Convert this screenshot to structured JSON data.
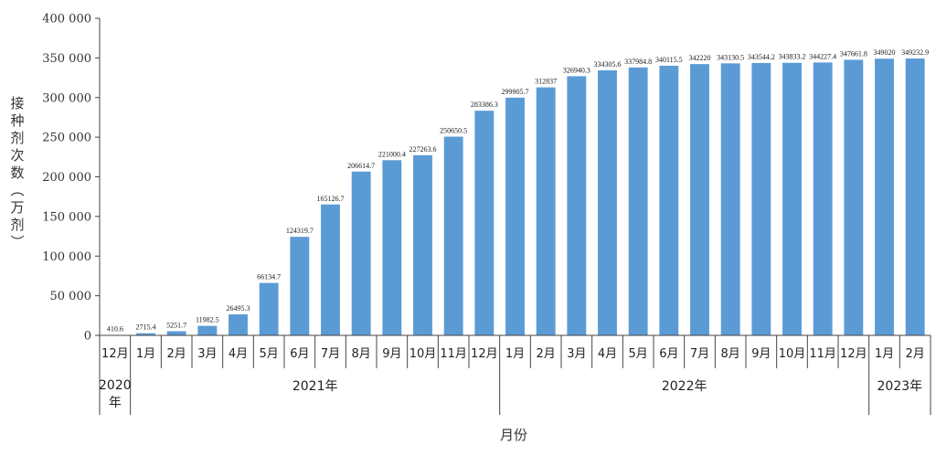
{
  "chart_data": {
    "type": "bar",
    "title": "",
    "xlabel": "月份",
    "ylabel": "接种剂次数（万剂）",
    "ylim": [
      0,
      400000
    ],
    "yticks": [
      "0",
      "50 000",
      "100 000",
      "150 000",
      "200 000",
      "250 000",
      "300 000",
      "350 000",
      "400 000"
    ],
    "grid": false,
    "bar_color": "#5b9bd5",
    "categories": [
      "12月",
      "1月",
      "2月",
      "3月",
      "4月",
      "5月",
      "6月",
      "7月",
      "8月",
      "9月",
      "10月",
      "11月",
      "12月",
      "1月",
      "2月",
      "3月",
      "4月",
      "5月",
      "6月",
      "7月",
      "8月",
      "9月",
      "10月",
      "11月",
      "12月",
      "1月",
      "2月"
    ],
    "values": [
      410.6,
      2715.4,
      5251.7,
      11982.5,
      26495.3,
      66134.7,
      124319.7,
      165126.7,
      206614.7,
      221000.4,
      227263.6,
      250650.5,
      283386.3,
      299905.7,
      312837,
      326940.3,
      334305.6,
      337984.8,
      340115.5,
      342220,
      343130.5,
      343544.2,
      343833.2,
      344227.4,
      347661.8,
      349020,
      349232.9
    ],
    "value_labels": [
      "410.6",
      "2715.4",
      "5251.7",
      "11982.5",
      "26495.3",
      "66134.7",
      "124319.7",
      "165126.7",
      "206614.7",
      "221000.4",
      "227263.6",
      "250650.5",
      "283386.3",
      "299905.7",
      "312837",
      "326940.3",
      "334305.6",
      "337984.8",
      "340115.5",
      "342220",
      "343130.5",
      "343544.2",
      "343833.2",
      "344227.4",
      "347661.8",
      "349020",
      "349232.9"
    ],
    "year_groups": [
      {
        "label": "2020年",
        "start": 0,
        "end": 0
      },
      {
        "label": "2021年",
        "start": 1,
        "end": 12
      },
      {
        "label": "2022年",
        "start": 13,
        "end": 24
      },
      {
        "label": "2023年",
        "start": 25,
        "end": 26
      }
    ]
  }
}
